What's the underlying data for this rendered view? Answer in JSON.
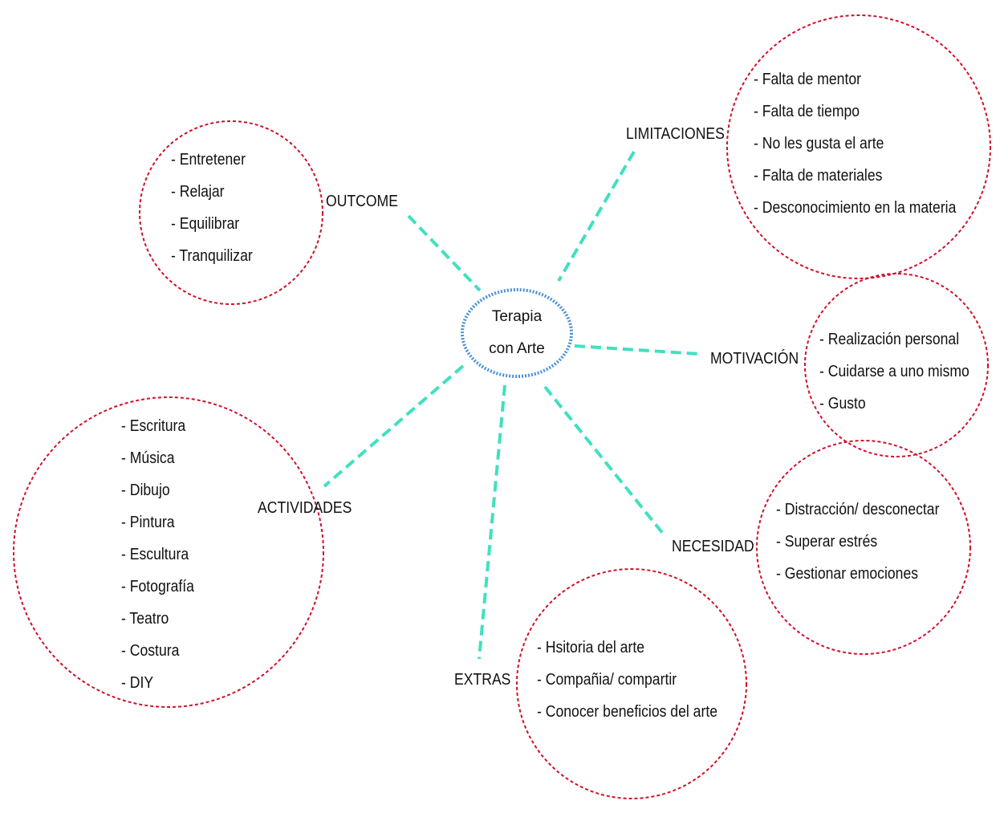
{
  "colors": {
    "connector": "#40e0c0",
    "circle_border": "#d0102a",
    "center_border": "#4a90d9",
    "text": "#111111"
  },
  "center": {
    "line1": "Terapia",
    "line2": "con Arte"
  },
  "branches": {
    "outcome": {
      "label": "OUTCOME",
      "items": [
        "- Entretener",
        "- Relajar",
        "- Equilibrar",
        "- Tranquilizar"
      ]
    },
    "limitaciones": {
      "label": "LIMITACIONES",
      "items": [
        "-  Falta de mentor",
        "- Falta de tiempo",
        "- No les gusta el arte",
        "- Falta de materiales",
        "- Desconocimiento en la materia"
      ]
    },
    "motivacion": {
      "label": "MOTIVACIÓN",
      "items": [
        "- Realización personal",
        "- Cuidarse a uno mismo",
        "- Gusto"
      ]
    },
    "necesidad": {
      "label": "NECESIDAD",
      "items": [
        "- Distracción/ desconectar",
        "- Superar estrés",
        "- Gestionar emociones"
      ]
    },
    "extras": {
      "label": "EXTRAS",
      "items": [
        "- Hsitoria del arte",
        "- Compañia/ compartir",
        "- Conocer beneficios del arte"
      ]
    },
    "actividades": {
      "label": "ACTIVIDADES",
      "items": [
        "- Escritura",
        "- Música",
        "- Dibujo",
        "- Pintura",
        "- Escultura",
        "- Fotografía",
        "- Teatro",
        "- Costura",
        "- DIY"
      ]
    }
  }
}
